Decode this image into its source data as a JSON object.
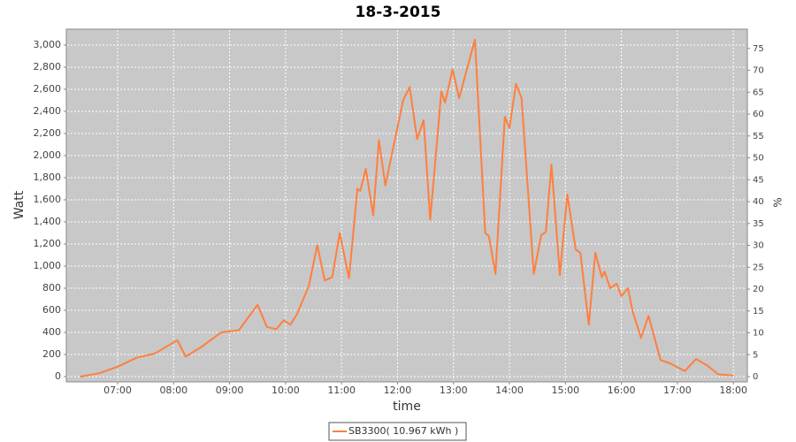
{
  "chart_data": {
    "type": "line",
    "title": "18-3-2015",
    "xlabel": "time",
    "ylabel": "Watt",
    "y2label": "%",
    "x": [
      "06:20",
      "06:40",
      "07:00",
      "07:20",
      "07:40",
      "08:00",
      "08:04",
      "08:13",
      "08:30",
      "08:51",
      "09:10",
      "09:30",
      "09:40",
      "09:50",
      "09:58",
      "10:05",
      "10:12",
      "10:25",
      "10:34",
      "10:42",
      "10:50",
      "10:58",
      "11:08",
      "11:17",
      "11:20",
      "11:26",
      "11:34",
      "11:40",
      "11:47",
      "12:06",
      "12:13",
      "12:21",
      "12:28",
      "12:35",
      "12:47",
      "12:51",
      "12:59",
      "13:06",
      "13:23",
      "13:34",
      "13:38",
      "13:45",
      "13:55",
      "14:00",
      "14:07",
      "14:13",
      "14:26",
      "14:34",
      "14:39",
      "14:45",
      "14:54",
      "15:02",
      "15:11",
      "15:16",
      "15:25",
      "15:32",
      "15:39",
      "15:42",
      "15:48",
      "15:55",
      "16:00",
      "16:07",
      "16:12",
      "16:21",
      "16:29",
      "16:42",
      "16:52",
      "17:08",
      "17:20",
      "17:32",
      "17:44",
      "18:00"
    ],
    "series": [
      {
        "name": "SB3300( 10.967 kWh )",
        "color": "#ff7f3f",
        "values": [
          0,
          30,
          90,
          170,
          210,
          310,
          330,
          180,
          270,
          400,
          420,
          650,
          450,
          430,
          510,
          470,
          560,
          820,
          1190,
          870,
          900,
          1300,
          890,
          1700,
          1680,
          1880,
          1460,
          2140,
          1730,
          2500,
          2620,
          2150,
          2320,
          1420,
          2580,
          2480,
          2780,
          2520,
          3050,
          1300,
          1270,
          930,
          2350,
          2250,
          2650,
          2520,
          930,
          1280,
          1310,
          1920,
          920,
          1650,
          1150,
          1120,
          470,
          1120,
          900,
          950,
          800,
          840,
          730,
          800,
          590,
          350,
          550,
          150,
          120,
          50,
          160,
          100,
          20,
          10
        ]
      }
    ],
    "xlim": [
      "06:05",
      "18:15"
    ],
    "xticks": [
      "07:00",
      "08:00",
      "09:00",
      "10:00",
      "11:00",
      "12:00",
      "13:00",
      "14:00",
      "15:00",
      "16:00",
      "17:00",
      "18:00"
    ],
    "ylim": [
      -48,
      3144
    ],
    "yticks": [
      0,
      200,
      400,
      600,
      800,
      {
        "value": 1000,
        "label": "1,000"
      },
      {
        "value": 1200,
        "label": "1,200"
      },
      {
        "value": 1400,
        "label": "1,400"
      },
      {
        "value": 1600,
        "label": "1,600"
      },
      {
        "value": 1800,
        "label": "1,800"
      },
      {
        "value": 2000,
        "label": "2,000"
      },
      {
        "value": 2200,
        "label": "2,200"
      },
      {
        "value": 2400,
        "label": "2,400"
      },
      {
        "value": 2600,
        "label": "2,600"
      },
      {
        "value": 2800,
        "label": "2,800"
      },
      {
        "value": 3000,
        "label": "3,000"
      }
    ],
    "y2lim": [
      -1.2,
      79.4
    ],
    "y2ticks": [
      0,
      5,
      10,
      15,
      20,
      25,
      30,
      35,
      40,
      45,
      50,
      55,
      60,
      65,
      70,
      75
    ],
    "grid": true,
    "legend": "bottom"
  }
}
